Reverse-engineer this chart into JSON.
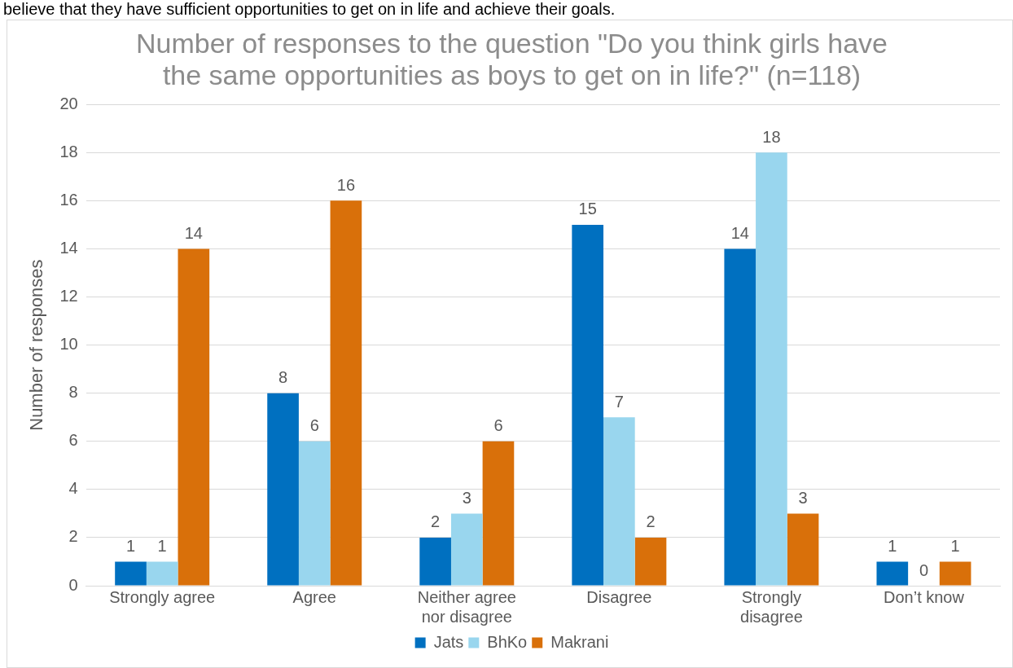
{
  "chart_data": {
    "type": "bar",
    "title": "Number of responses to the question \"Do you think girls have the same opportunities as boys to get on in life?\" (n=118)",
    "ylabel": "Number of responses",
    "annotations": [
      "believe that they have sufficient opportunities to get on in life and achieve their goals."
    ],
    "categories": [
      "Strongly agree",
      "Agree",
      "Neither agree nor disagree",
      "Disagree",
      "Strongly disagree",
      "Don’t know"
    ],
    "series": [
      {
        "name": "Jats",
        "color": "#0070c0",
        "values": [
          1,
          8,
          2,
          15,
          14,
          1
        ]
      },
      {
        "name": "BhKo",
        "color": "#99d6ee",
        "values": [
          1,
          6,
          3,
          7,
          18,
          0
        ]
      },
      {
        "name": "Makrani",
        "color": "#d9700a",
        "values": [
          14,
          16,
          6,
          2,
          3,
          1
        ]
      }
    ],
    "ylim": [
      0,
      20
    ],
    "yticks": [
      0,
      2,
      4,
      6,
      8,
      10,
      12,
      14,
      16,
      18,
      20
    ],
    "grid": "y",
    "legend": "bottom",
    "data_labels": true
  }
}
